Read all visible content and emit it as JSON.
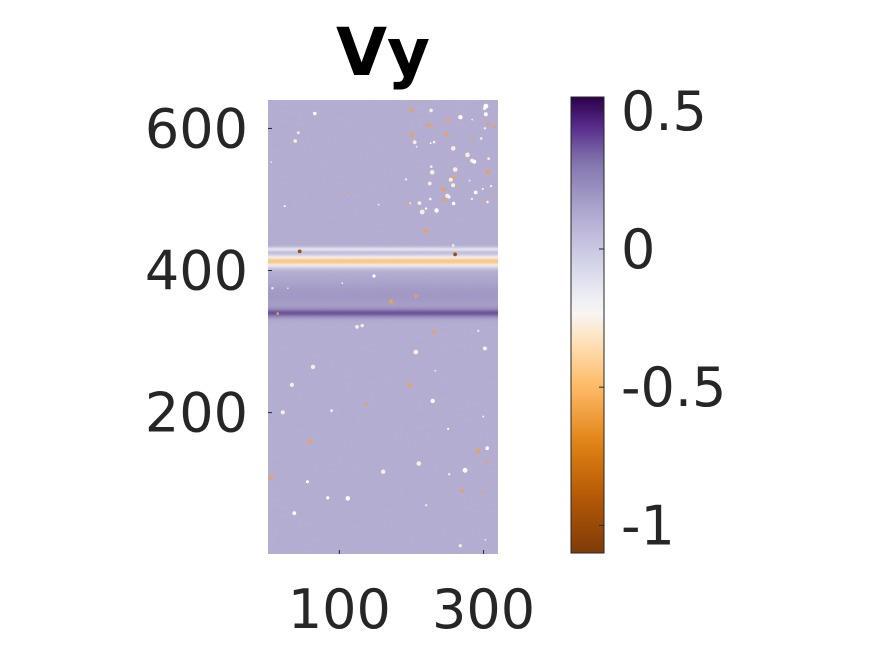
{
  "chart_data": {
    "type": "heatmap",
    "title": "Vy",
    "xlabel": "",
    "ylabel": "",
    "xlim": [
      1,
      320
    ],
    "ylim": [
      1,
      640
    ],
    "x_ticks": [
      {
        "value": 100,
        "label": "100"
      },
      {
        "value": 300,
        "label": "300"
      }
    ],
    "y_ticks": [
      {
        "value": 200,
        "label": "200"
      },
      {
        "value": 400,
        "label": "400"
      },
      {
        "value": 600,
        "label": "600"
      }
    ],
    "colorbar": {
      "limits": [
        -1.1,
        0.55
      ],
      "ticks": [
        {
          "value": 0.5,
          "label": "0.5"
        },
        {
          "value": 0,
          "label": "0"
        },
        {
          "value": -0.5,
          "label": "-0.5"
        },
        {
          "value": -1,
          "label": "-1"
        }
      ],
      "colormap": "PuOr",
      "colors": {
        "high": "#2d004b",
        "mid": "#f7f7f7",
        "low": "#7f3b08"
      }
    },
    "background_value": 0.12,
    "features": [
      {
        "name": "",
        "y_center": 413,
        "half_width": 8,
        "value": -0.45
      },
      {
        "name": "",
        "y_center": 430,
        "half_width": 3,
        "value": -0.15
      },
      {
        "name": "",
        "y_center": 340,
        "half_width": 6,
        "value": 0.38
      },
      {
        "name": "",
        "y_center": 365,
        "half_width": 22,
        "value": 0.2
      }
    ]
  }
}
